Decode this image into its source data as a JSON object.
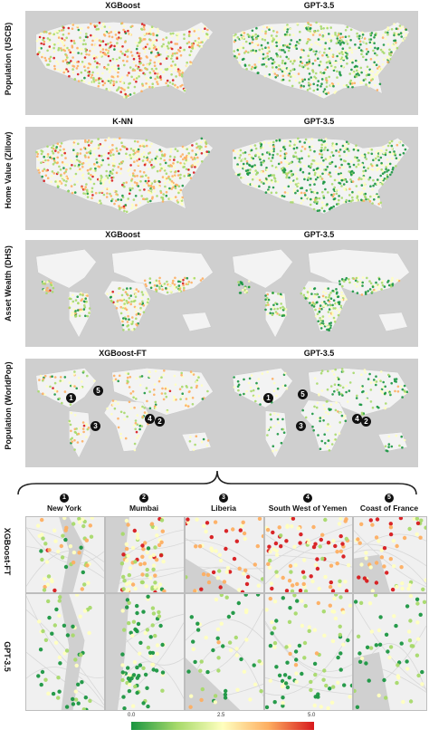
{
  "rows": [
    {
      "label": "Population (USCB)",
      "left_title": "XGBoost",
      "right_title": "GPT-3.5",
      "region": "us"
    },
    {
      "label": "Home Value (Zillow)",
      "left_title": "K-NN",
      "right_title": "GPT-3.5",
      "region": "us"
    },
    {
      "label": "Asset Wealth (DHS)",
      "left_title": "XGBoost",
      "right_title": "GPT-3.5",
      "region": "world"
    },
    {
      "label": "Population (WorldPop)",
      "left_title": "XGBoost-FT",
      "right_title": "GPT-3.5",
      "region": "world"
    }
  ],
  "badges": [
    "1",
    "2",
    "3",
    "4",
    "5"
  ],
  "regions": [
    {
      "num": "1",
      "name": "New York"
    },
    {
      "num": "2",
      "name": "Mumbai"
    },
    {
      "num": "3",
      "name": "Liberia"
    },
    {
      "num": "4",
      "name": "South West of Yemen"
    },
    {
      "num": "5",
      "name": "Coast of France"
    }
  ],
  "zoom_rows": [
    "XGBoost-FT",
    "GPT-3.5"
  ],
  "colorbar": {
    "min": "0.0",
    "mid": "2.5",
    "max": "5.0",
    "colors": [
      "#1a9641",
      "#a6d96a",
      "#ffffbf",
      "#fdae61",
      "#d7191c"
    ]
  }
}
